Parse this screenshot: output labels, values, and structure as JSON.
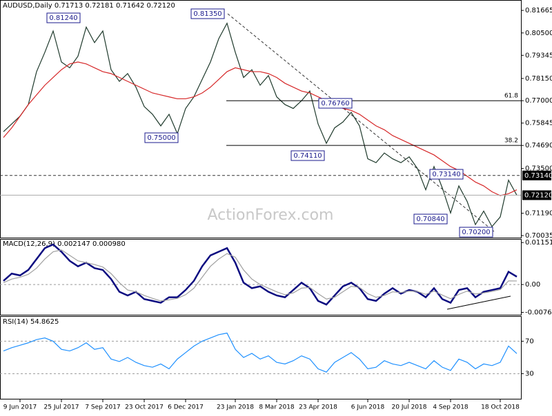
{
  "chart_data": [
    {
      "type": "line",
      "title": "AUDUSD,Daily  0.71713 0.72181 0.71642 0.72120",
      "watermark": "ActionForex.com",
      "categories": [
        null,
        null,
        "9 Jun 2017",
        null,
        null,
        null,
        null,
        "25 Jul 2017",
        null,
        null,
        null,
        null,
        "7 Sep 2017",
        null,
        null,
        null,
        null,
        "23 Oct 2017",
        null,
        null,
        null,
        null,
        "6 Dec 2017",
        null,
        null,
        null,
        null,
        null,
        "23 Jan 2018",
        null,
        null,
        null,
        null,
        "8 Mar 2018",
        null,
        null,
        null,
        null,
        "23 Apr 2018",
        null,
        null,
        null,
        null,
        null,
        "6 Jun 2018",
        null,
        null,
        null,
        null,
        "20 Jul 2018",
        null,
        null,
        null,
        null,
        "4 Sep 2018",
        null,
        null,
        null,
        null,
        null,
        "18 Oct 2018",
        null,
        null
      ],
      "series": [
        {
          "color": "#1f3a2c",
          "values": [
            0.754,
            0.758,
            0.762,
            0.768,
            0.785,
            0.795,
            0.806,
            0.79,
            0.787,
            0.793,
            0.808,
            0.8,
            0.806,
            0.786,
            0.78,
            0.784,
            0.777,
            0.767,
            0.763,
            0.757,
            0.763,
            0.753,
            0.766,
            0.772,
            0.781,
            0.79,
            0.802,
            0.81,
            0.795,
            0.782,
            0.786,
            0.778,
            0.783,
            0.772,
            0.768,
            0.766,
            0.77,
            0.775,
            0.758,
            0.748,
            0.756,
            0.759,
            0.764,
            0.757,
            0.74,
            0.738,
            0.743,
            0.74,
            0.738,
            0.741,
            0.735,
            0.724,
            0.736,
            0.725,
            0.712,
            0.726,
            0.718,
            0.706,
            0.713,
            0.705,
            0.71,
            0.729,
            0.7212
          ]
        },
        {
          "color": "#d62728",
          "values": [
            0.751,
            0.756,
            0.762,
            0.768,
            0.773,
            0.778,
            0.782,
            0.786,
            0.789,
            0.79,
            0.789,
            0.787,
            0.785,
            0.784,
            0.782,
            0.78,
            0.778,
            0.776,
            0.774,
            0.773,
            0.772,
            0.771,
            0.771,
            0.772,
            0.774,
            0.777,
            0.781,
            0.785,
            0.787,
            0.786,
            0.785,
            0.785,
            0.784,
            0.782,
            0.779,
            0.777,
            0.775,
            0.774,
            0.772,
            0.77,
            0.768,
            0.766,
            0.765,
            0.763,
            0.76,
            0.757,
            0.755,
            0.752,
            0.75,
            0.748,
            0.746,
            0.744,
            0.742,
            0.739,
            0.736,
            0.734,
            0.731,
            0.728,
            0.726,
            0.723,
            0.721,
            0.722,
            0.724
          ]
        }
      ],
      "ylim": [
        0.6993,
        0.8213
      ],
      "yticks": [
        {
          "value": 0.81665,
          "label": "0.81665"
        },
        {
          "value": 0.805,
          "label": "0.80500"
        },
        {
          "value": 0.79345,
          "label": "0.79345"
        },
        {
          "value": 0.7815,
          "label": "0.78150"
        },
        {
          "value": 0.77,
          "label": "0.77000"
        },
        {
          "value": 0.75845,
          "label": "0.75845"
        },
        {
          "value": 0.7469,
          "label": "0.74690"
        },
        {
          "value": 0.735,
          "label": "0.73500"
        },
        {
          "value": 0.7119,
          "label": "0.71190"
        },
        {
          "value": 0.70035,
          "label": "0.70035"
        }
      ],
      "annotations": [
        {
          "value": 0.8124,
          "label": "0.81240"
        },
        {
          "value": 0.8135,
          "label": "0.81350"
        },
        {
          "value": 0.75,
          "label": "0.75000"
        },
        {
          "value": 0.7676,
          "label": "0.76760"
        },
        {
          "value": 0.7411,
          "label": "0.74110"
        },
        {
          "value": 0.7314,
          "label": "0.73140"
        },
        {
          "value": 0.7084,
          "label": "0.70840"
        },
        {
          "value": 0.702,
          "label": "0.70200"
        }
      ],
      "fib_levels": [
        {
          "level": 61.8,
          "price": 0.77
        },
        {
          "level": 38.2,
          "price": 0.7469
        }
      ],
      "ref_lines": [
        {
          "value": 0.7314,
          "label": "0.73140",
          "style": "dashed"
        },
        {
          "value": 0.7212,
          "label": "0.72120",
          "style": "solid"
        }
      ]
    },
    {
      "type": "line",
      "title": "MACD(12,26,9) 0.002147 0.000980",
      "series": [
        {
          "color": "#0a0a80",
          "values": [
            0.001,
            0.003,
            0.0025,
            0.004,
            0.007,
            0.01,
            0.011,
            0.009,
            0.0065,
            0.005,
            0.006,
            0.0045,
            0.004,
            0.0015,
            -0.002,
            -0.003,
            -0.002,
            -0.004,
            -0.0045,
            -0.005,
            -0.0035,
            -0.0035,
            -0.0015,
            0.001,
            0.005,
            0.008,
            0.009,
            0.01,
            0.006,
            0.0005,
            -0.001,
            -0.0005,
            -0.002,
            -0.003,
            -0.0035,
            -0.0015,
            0.0005,
            -0.001,
            -0.0045,
            -0.0055,
            -0.003,
            -0.0005,
            0.0005,
            -0.001,
            -0.004,
            -0.0045,
            -0.0025,
            -0.001,
            -0.0025,
            -0.0015,
            -0.002,
            -0.0035,
            -0.001,
            -0.004,
            -0.005,
            -0.0015,
            -0.001,
            -0.0035,
            -0.002,
            -0.0015,
            -0.001,
            0.0035,
            0.002147
          ]
        },
        {
          "color": "#a0a0a0",
          "values": [
            0.0005,
            0.0015,
            0.002,
            0.0028,
            0.0045,
            0.007,
            0.009,
            0.0095,
            0.008,
            0.0065,
            0.006,
            0.0055,
            0.0048,
            0.003,
            0.0005,
            -0.0015,
            -0.002,
            -0.003,
            -0.0038,
            -0.0045,
            -0.0042,
            -0.0038,
            -0.0028,
            -0.001,
            0.002,
            0.005,
            0.007,
            0.0085,
            0.0075,
            0.004,
            0.0015,
            0,
            -0.001,
            -0.002,
            -0.0028,
            -0.0023,
            -0.001,
            -0.0008,
            -0.0025,
            -0.004,
            -0.0035,
            -0.002,
            -0.0005,
            -0.0008,
            -0.0025,
            -0.0035,
            -0.003,
            -0.002,
            -0.0022,
            -0.0018,
            -0.0019,
            -0.0027,
            -0.0018,
            -0.0029,
            -0.0039,
            -0.0027,
            -0.0018,
            -0.0026,
            -0.0023,
            -0.0019,
            -0.0014,
            0.001,
            0.00098
          ]
        }
      ],
      "ylim": [
        -0.0083,
        0.0125
      ],
      "yticks": [
        0.011517,
        {
          "value": 0,
          "label": "0.00"
        },
        -0.007634
      ]
    },
    {
      "type": "line",
      "title": "RSI(14) 54.8625",
      "series": [
        {
          "color": "#1e90ff",
          "values": [
            58,
            62,
            65,
            68,
            72,
            74,
            70,
            60,
            58,
            62,
            68,
            60,
            62,
            48,
            45,
            50,
            44,
            40,
            38,
            42,
            36,
            48,
            56,
            64,
            70,
            74,
            78,
            80,
            60,
            50,
            55,
            48,
            52,
            44,
            42,
            46,
            52,
            48,
            36,
            32,
            44,
            50,
            56,
            48,
            36,
            38,
            46,
            42,
            40,
            44,
            40,
            36,
            46,
            38,
            34,
            48,
            44,
            36,
            42,
            40,
            44,
            64,
            54.8625
          ]
        }
      ],
      "ylim": [
        0,
        100
      ],
      "yticks": [
        30,
        70
      ]
    }
  ]
}
